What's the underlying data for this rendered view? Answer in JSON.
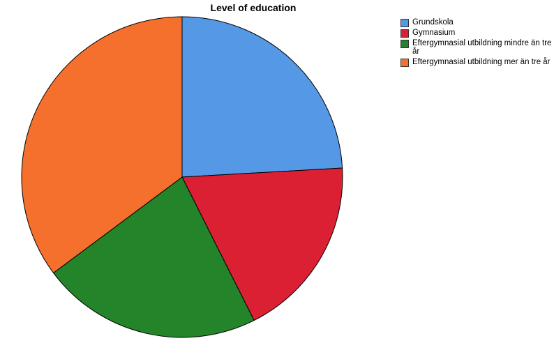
{
  "chart_data": {
    "type": "pie",
    "title": "Level of education",
    "start_angle_deg": 0,
    "direction": "clockwise",
    "legend_position": "top-right",
    "slices": [
      {
        "label": "Grundskola",
        "value": 24.1,
        "color": "#5599e6"
      },
      {
        "label": "Gymnasium",
        "value": 18.5,
        "color": "#db2034"
      },
      {
        "label": "Eftergymnasial utbildning mindre än tre år",
        "value": 22.2,
        "color": "#23842a"
      },
      {
        "label": "Eftergymnasial utbildning mer än tre år",
        "value": 35.2,
        "color": "#f5702d"
      }
    ]
  }
}
